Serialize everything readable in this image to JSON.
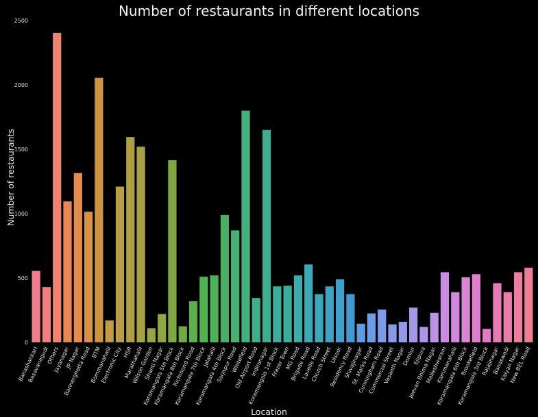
{
  "chart_data": {
    "type": "bar",
    "title": "Number of restaurants in different locations",
    "xlabel": "Location",
    "ylabel": "Number of restaurants",
    "ylim": [
      0,
      2500
    ],
    "yticks": [
      0,
      500,
      1000,
      1500,
      2000,
      2500
    ],
    "grid": false,
    "legend": "none",
    "background": "#000000",
    "categories": [
      "Banashankari",
      "Basavanagudi",
      "Others",
      "Jayanagar",
      "JP Nagar",
      "Bannerghatta Road",
      "BTM",
      "Bommanahalli",
      "Electronic City",
      "HSR",
      "Marathahalli",
      "Wilson Garden",
      "Shanti Nagar",
      "Koramangala 5th Block",
      "Koramangala 8th Block",
      "Richmond Road",
      "Koramangala 7th Block",
      "Jalahalli",
      "Koramangala 4th Block",
      "Sarjapur Road",
      "Whitefield",
      "Old Airport Road",
      "Indiranagar",
      "Koramangala 1st Block",
      "Frazer Town",
      "MG Road",
      "Brigade Road",
      "Lavelle Road",
      "Church Street",
      "Ulsoor",
      "Residency Road",
      "Shivajinagar",
      "St. Marks Road",
      "Cunningham Road",
      "Commercial Street",
      "Vasanth Nagar",
      "Domlur",
      "Ejipura",
      "Jeevan Bhima Nagar",
      "Malleshwaram",
      "Kammanahalli",
      "Koramangala 6th Block",
      "Brookefield",
      "Koramangala 3rd Block",
      "Rajajinagar",
      "Banaswadi",
      "Kalyan Nagar",
      "New BEL Road"
    ],
    "values": [
      555,
      430,
      2405,
      1095,
      1315,
      1015,
      2055,
      170,
      1210,
      1595,
      1520,
      110,
      220,
      1415,
      125,
      320,
      510,
      520,
      990,
      870,
      1800,
      345,
      1650,
      435,
      440,
      520,
      605,
      375,
      435,
      490,
      375,
      145,
      225,
      255,
      140,
      160,
      270,
      120,
      230,
      545,
      390,
      505,
      530,
      105,
      460,
      390,
      545,
      580
    ],
    "colors": [
      "#f07d8b",
      "#f07f7f",
      "#ef8270",
      "#e98856",
      "#e38c4b",
      "#d69343",
      "#cc9641",
      "#c49a44",
      "#b99d44",
      "#ad9f42",
      "#a6a243",
      "#9aa542",
      "#8fa742",
      "#7fa842",
      "#6fab45",
      "#5caf4b",
      "#52b150",
      "#4cb158",
      "#49b167",
      "#46b173",
      "#42b07f",
      "#3fae8a",
      "#3eae93",
      "#3cae9b",
      "#3bad9f",
      "#3cacab",
      "#3caab4",
      "#3ea8bb",
      "#3fa4c3",
      "#41a0cb",
      "#439ad2",
      "#5d9ddf",
      "#6e9ce6",
      "#7c9be9",
      "#8999ea",
      "#9399ea",
      "#a198ea",
      "#ae95ea",
      "#be90e6",
      "#c98ce2",
      "#d287db",
      "#d985d4",
      "#e07dcd",
      "#e47ac5",
      "#e77bb6",
      "#e97ca9",
      "#ec7e9d",
      "#ef7e95"
    ]
  }
}
